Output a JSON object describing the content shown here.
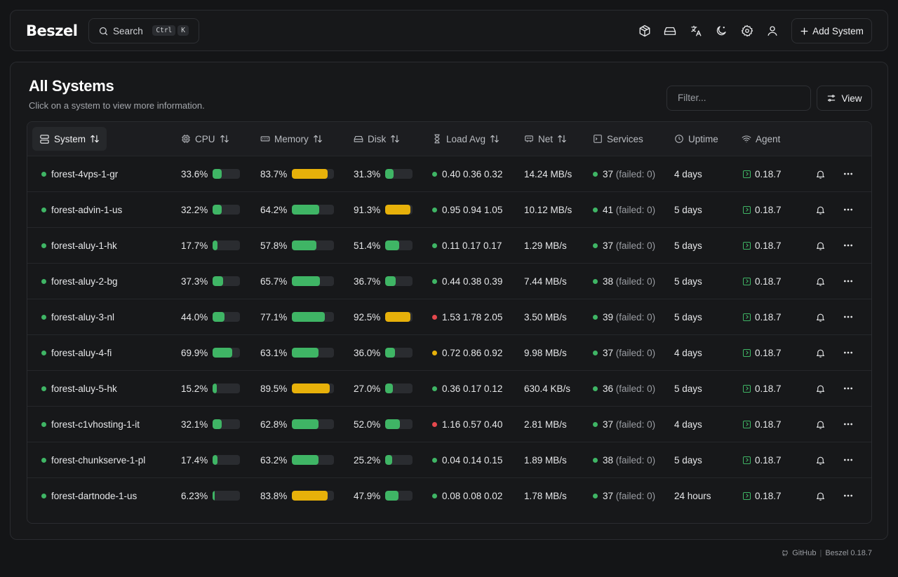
{
  "app": {
    "logo": "Beszel"
  },
  "search": {
    "label": "Search",
    "kbd_ctrl": "Ctrl",
    "kbd_key": "K"
  },
  "toolbar": {
    "icons": [
      "box-icon",
      "hard-drive-icon",
      "translate-icon",
      "moon-icon",
      "settings-icon",
      "user-icon"
    ],
    "add_label": "Add System"
  },
  "page": {
    "title": "All Systems",
    "subtitle": "Click on a system to view more information.",
    "filter_placeholder": "Filter...",
    "view_label": "View"
  },
  "table": {
    "headers": {
      "system": "System",
      "cpu": "CPU",
      "memory": "Memory",
      "disk": "Disk",
      "load": "Load Avg",
      "net": "Net",
      "services": "Services",
      "uptime": "Uptime",
      "agent": "Agent"
    },
    "colors": {
      "ok": "#3fb565",
      "warn": "#e7b10a",
      "crit": "#e5484d"
    },
    "rows": [
      {
        "name": "forest-4vps-1-gr",
        "cpu": "33.6%",
        "cpu_v": 33.6,
        "mem": "83.7%",
        "mem_v": 83.7,
        "disk": "31.3%",
        "disk_v": 31.3,
        "load_status": "ok",
        "load": "0.40 0.36 0.32",
        "net": "14.24 MB/s",
        "services": "37",
        "failed": "(failed: 0)",
        "uptime": "4 days",
        "agent": "0.18.7"
      },
      {
        "name": "forest-advin-1-us",
        "cpu": "32.2%",
        "cpu_v": 32.2,
        "mem": "64.2%",
        "mem_v": 64.2,
        "disk": "91.3%",
        "disk_v": 91.3,
        "load_status": "ok",
        "load": "0.95 0.94 1.05",
        "net": "10.12 MB/s",
        "services": "41",
        "failed": "(failed: 0)",
        "uptime": "5 days",
        "agent": "0.18.7"
      },
      {
        "name": "forest-aluy-1-hk",
        "cpu": "17.7%",
        "cpu_v": 17.7,
        "mem": "57.8%",
        "mem_v": 57.8,
        "disk": "51.4%",
        "disk_v": 51.4,
        "load_status": "ok",
        "load": "0.11 0.17 0.17",
        "net": "1.29 MB/s",
        "services": "37",
        "failed": "(failed: 0)",
        "uptime": "5 days",
        "agent": "0.18.7"
      },
      {
        "name": "forest-aluy-2-bg",
        "cpu": "37.3%",
        "cpu_v": 37.3,
        "mem": "65.7%",
        "mem_v": 65.7,
        "disk": "36.7%",
        "disk_v": 36.7,
        "load_status": "ok",
        "load": "0.44 0.38 0.39",
        "net": "7.44 MB/s",
        "services": "38",
        "failed": "(failed: 0)",
        "uptime": "5 days",
        "agent": "0.18.7"
      },
      {
        "name": "forest-aluy-3-nl",
        "cpu": "44.0%",
        "cpu_v": 44.0,
        "mem": "77.1%",
        "mem_v": 77.1,
        "disk": "92.5%",
        "disk_v": 92.5,
        "load_status": "crit",
        "load": "1.53 1.78 2.05",
        "net": "3.50 MB/s",
        "services": "39",
        "failed": "(failed: 0)",
        "uptime": "5 days",
        "agent": "0.18.7"
      },
      {
        "name": "forest-aluy-4-fi",
        "cpu": "69.9%",
        "cpu_v": 69.9,
        "mem": "63.1%",
        "mem_v": 63.1,
        "disk": "36.0%",
        "disk_v": 36.0,
        "load_status": "warn",
        "load": "0.72 0.86 0.92",
        "net": "9.98 MB/s",
        "services": "37",
        "failed": "(failed: 0)",
        "uptime": "4 days",
        "agent": "0.18.7"
      },
      {
        "name": "forest-aluy-5-hk",
        "cpu": "15.2%",
        "cpu_v": 15.2,
        "mem": "89.5%",
        "mem_v": 89.5,
        "disk": "27.0%",
        "disk_v": 27.0,
        "load_status": "ok",
        "load": "0.36 0.17 0.12",
        "net": "630.4 KB/s",
        "services": "36",
        "failed": "(failed: 0)",
        "uptime": "5 days",
        "agent": "0.18.7"
      },
      {
        "name": "forest-c1vhosting-1-it",
        "cpu": "32.1%",
        "cpu_v": 32.1,
        "mem": "62.8%",
        "mem_v": 62.8,
        "disk": "52.0%",
        "disk_v": 52.0,
        "load_status": "crit",
        "load": "1.16 0.57 0.40",
        "net": "2.81 MB/s",
        "services": "37",
        "failed": "(failed: 0)",
        "uptime": "4 days",
        "agent": "0.18.7"
      },
      {
        "name": "forest-chunkserve-1-pl",
        "cpu": "17.4%",
        "cpu_v": 17.4,
        "mem": "63.2%",
        "mem_v": 63.2,
        "disk": "25.2%",
        "disk_v": 25.2,
        "load_status": "ok",
        "load": "0.04 0.14 0.15",
        "net": "1.89 MB/s",
        "services": "38",
        "failed": "(failed: 0)",
        "uptime": "5 days",
        "agent": "0.18.7"
      },
      {
        "name": "forest-dartnode-1-us",
        "cpu": "6.23%",
        "cpu_v": 6.23,
        "mem": "83.8%",
        "mem_v": 83.8,
        "disk": "47.9%",
        "disk_v": 47.9,
        "load_status": "ok",
        "load": "0.08 0.08 0.02",
        "net": "1.78 MB/s",
        "services": "37",
        "failed": "(failed: 0)",
        "uptime": "24 hours",
        "agent": "0.18.7"
      }
    ]
  },
  "footer": {
    "github": "GitHub",
    "version": "Beszel 0.18.7"
  }
}
